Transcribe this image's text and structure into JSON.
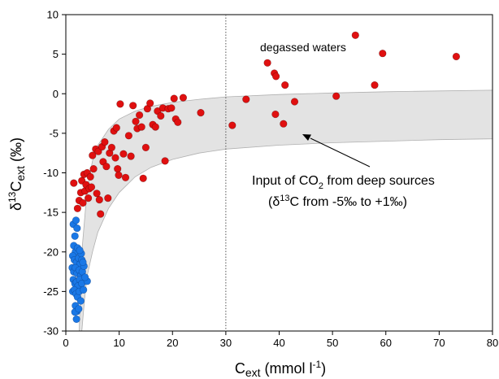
{
  "chart_data": {
    "type": "scatter",
    "title": "",
    "xlabel": {
      "main": "C",
      "sub": "ext",
      "unit": " (mmol l",
      "unit_sup": "-1",
      "unit_end": ")"
    },
    "ylabel": {
      "pre": "δ",
      "sup": "13",
      "main": "C",
      "sub": "ext",
      "unit": " (‰)"
    },
    "xlim": [
      0,
      80
    ],
    "ylim": [
      -30,
      10
    ],
    "xticks": [
      0,
      10,
      20,
      30,
      40,
      50,
      60,
      70,
      80
    ],
    "yticks": [
      -30,
      -25,
      -20,
      -15,
      -10,
      -5,
      0,
      5,
      10
    ],
    "grid": false,
    "reference_line": {
      "x": 30,
      "style": "dotted"
    },
    "annotations": {
      "degassed": "degassed waters",
      "input_line1_a": "Input of CO",
      "input_line1_sub": "2",
      "input_line1_b": " from deep sources",
      "input_line2_a": "(δ",
      "input_line2_sup": "13",
      "input_line2_b": "C from -5‰ to +1‰)"
    },
    "band": {
      "description_none": "",
      "upper": [
        [
          2.5,
          -30
        ],
        [
          3,
          -20
        ],
        [
          4,
          -12
        ],
        [
          5,
          -8.5
        ],
        [
          6,
          -6.5
        ],
        [
          8,
          -4.5
        ],
        [
          10,
          -3.2
        ],
        [
          13,
          -2.2
        ],
        [
          16,
          -1.6
        ],
        [
          20,
          -1.1
        ],
        [
          25,
          -0.7
        ],
        [
          30,
          -0.4
        ],
        [
          40,
          -0.1
        ],
        [
          50,
          0.1
        ],
        [
          60,
          0.25
        ],
        [
          70,
          0.35
        ],
        [
          80,
          0.45
        ]
      ],
      "lower": [
        [
          80,
          -5.7
        ],
        [
          70,
          -5.8
        ],
        [
          60,
          -6
        ],
        [
          50,
          -6.2
        ],
        [
          40,
          -6.5
        ],
        [
          30,
          -7
        ],
        [
          25,
          -7.5
        ],
        [
          20,
          -8.3
        ],
        [
          16,
          -9.3
        ],
        [
          13,
          -10.5
        ],
        [
          10,
          -12.5
        ],
        [
          8,
          -14.5
        ],
        [
          6,
          -17.5
        ],
        [
          5,
          -20
        ],
        [
          4,
          -23
        ],
        [
          3.5,
          -26
        ],
        [
          3,
          -30
        ]
      ]
    },
    "series": [
      {
        "color": "#e01010",
        "points": [
          [
            1.5,
            -11.3
          ],
          [
            2.2,
            -14.5
          ],
          [
            2.5,
            -13.5
          ],
          [
            2.8,
            -12.5
          ],
          [
            3,
            -11
          ],
          [
            3.2,
            -13.8
          ],
          [
            3.4,
            -10.2
          ],
          [
            3.6,
            -12.3
          ],
          [
            3.8,
            -11.5
          ],
          [
            4,
            -10
          ],
          [
            4.2,
            -13.2
          ],
          [
            4.4,
            -12
          ],
          [
            4.6,
            -10.5
          ],
          [
            4.8,
            -11.8
          ],
          [
            5,
            -7.8
          ],
          [
            5.2,
            -9.5
          ],
          [
            5.6,
            -7
          ],
          [
            5.8,
            -12.6
          ],
          [
            6.1,
            -7.3
          ],
          [
            6.3,
            -13.4
          ],
          [
            6.5,
            -15.2
          ],
          [
            6.8,
            -6.7
          ],
          [
            7,
            -8.6
          ],
          [
            7.3,
            -6.1
          ],
          [
            7.6,
            -9.2
          ],
          [
            7.9,
            -13.2
          ],
          [
            8.2,
            -7.5
          ],
          [
            8.6,
            -6.8
          ],
          [
            9,
            -4.7
          ],
          [
            9.3,
            -8.1
          ],
          [
            9.5,
            -4.3
          ],
          [
            9.7,
            -9.5
          ],
          [
            9.9,
            -10.3
          ],
          [
            10.2,
            -1.3
          ],
          [
            10.8,
            -7.6
          ],
          [
            11.2,
            -10.6
          ],
          [
            11.8,
            -5.3
          ],
          [
            12.2,
            -7.9
          ],
          [
            12.6,
            -1.5
          ],
          [
            13.1,
            -3.5
          ],
          [
            13.4,
            -4.4
          ],
          [
            13.8,
            -2.7
          ],
          [
            14.2,
            -4.2
          ],
          [
            14.5,
            -10.7
          ],
          [
            15,
            -6.8
          ],
          [
            15.3,
            -1.9
          ],
          [
            15.8,
            -1.2
          ],
          [
            16.3,
            -3.9
          ],
          [
            16.8,
            -4.2
          ],
          [
            17.2,
            -2.2
          ],
          [
            17.8,
            -2.8
          ],
          [
            18.2,
            -1.8
          ],
          [
            18.6,
            -8.5
          ],
          [
            19.2,
            -1.9
          ],
          [
            19.8,
            -1.8
          ],
          [
            20.3,
            -0.6
          ],
          [
            20.6,
            -3.2
          ],
          [
            21,
            -3.6
          ],
          [
            22,
            -0.5
          ],
          [
            25.3,
            -2.4
          ],
          [
            31.2,
            -4
          ],
          [
            33.8,
            -0.7
          ],
          [
            37.8,
            3.9
          ],
          [
            39.1,
            2.6
          ],
          [
            39.4,
            2.2
          ],
          [
            39.3,
            -2.6
          ],
          [
            40.8,
            -3.8
          ],
          [
            41.1,
            1.1
          ],
          [
            42.9,
            -1
          ],
          [
            50.7,
            -0.3
          ],
          [
            54.3,
            7.4
          ],
          [
            57.9,
            1.1
          ],
          [
            59.4,
            5.1
          ],
          [
            73.2,
            4.7
          ]
        ]
      },
      {
        "color": "#1a78e6",
        "points": [
          [
            1.4,
            -16.5
          ],
          [
            1.7,
            -18
          ],
          [
            1.9,
            -16
          ],
          [
            2.1,
            -17
          ],
          [
            1.5,
            -19.2
          ],
          [
            1.8,
            -20
          ],
          [
            2.2,
            -19.5
          ],
          [
            1.3,
            -20.5
          ],
          [
            1.6,
            -21
          ],
          [
            2,
            -21.3
          ],
          [
            2.4,
            -20.8
          ],
          [
            2.7,
            -21.5
          ],
          [
            3,
            -21
          ],
          [
            1.2,
            -22
          ],
          [
            1.5,
            -22.5
          ],
          [
            1.8,
            -22
          ],
          [
            2.1,
            -22.7
          ],
          [
            2.5,
            -22.3
          ],
          [
            2.8,
            -23
          ],
          [
            3.1,
            -22.5
          ],
          [
            3.4,
            -21.8
          ],
          [
            1.4,
            -23.5
          ],
          [
            1.7,
            -24
          ],
          [
            2,
            -23.8
          ],
          [
            2.3,
            -24.3
          ],
          [
            2.6,
            -23.5
          ],
          [
            3,
            -24
          ],
          [
            1.3,
            -25
          ],
          [
            1.6,
            -24.8
          ],
          [
            1.9,
            -25.3
          ],
          [
            2.2,
            -25.7
          ],
          [
            2.5,
            -25
          ],
          [
            2.8,
            -26.2
          ],
          [
            4,
            -23.7
          ],
          [
            1.8,
            -26.8
          ],
          [
            2.1,
            -27.5
          ],
          [
            1.7,
            -27.6
          ],
          [
            2.4,
            -27.2
          ],
          [
            2,
            -28.5
          ],
          [
            3.3,
            -24.8
          ],
          [
            3.6,
            -23.2
          ],
          [
            2.9,
            -20.2
          ],
          [
            3.2,
            -21.3
          ],
          [
            2.6,
            -19.8
          ]
        ]
      }
    ]
  }
}
